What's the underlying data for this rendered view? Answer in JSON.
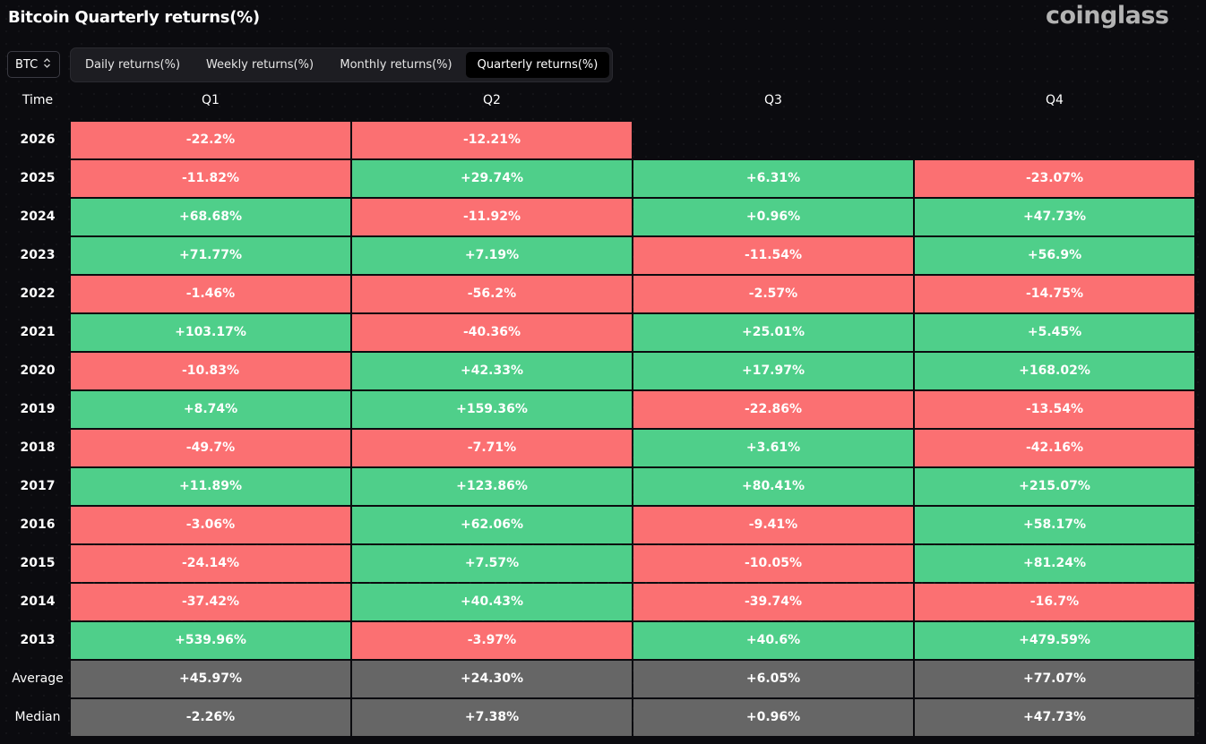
{
  "header": {
    "title": "Bitcoin Quarterly returns(%)",
    "logo_text": "coinglass"
  },
  "controls": {
    "coin": "BTC",
    "tabs": [
      {
        "label": "Daily returns(%)",
        "active": false
      },
      {
        "label": "Weekly returns(%)",
        "active": false
      },
      {
        "label": "Monthly returns(%)",
        "active": false
      },
      {
        "label": "Quarterly returns(%)",
        "active": true
      }
    ]
  },
  "colors": {
    "positive": "#4fcf8a",
    "negative": "#fb7072",
    "neutral": "#666666",
    "background": "#0b0b0f"
  },
  "table": {
    "time_header": "Time",
    "columns": [
      "Q1",
      "Q2",
      "Q3",
      "Q4"
    ],
    "rows": [
      {
        "year": "2026",
        "values": [
          "-22.2%",
          "-12.21%",
          "",
          ""
        ]
      },
      {
        "year": "2025",
        "values": [
          "-11.82%",
          "+29.74%",
          "+6.31%",
          "-23.07%"
        ]
      },
      {
        "year": "2024",
        "values": [
          "+68.68%",
          "-11.92%",
          "+0.96%",
          "+47.73%"
        ]
      },
      {
        "year": "2023",
        "values": [
          "+71.77%",
          "+7.19%",
          "-11.54%",
          "+56.9%"
        ]
      },
      {
        "year": "2022",
        "values": [
          "-1.46%",
          "-56.2%",
          "-2.57%",
          "-14.75%"
        ]
      },
      {
        "year": "2021",
        "values": [
          "+103.17%",
          "-40.36%",
          "+25.01%",
          "+5.45%"
        ]
      },
      {
        "year": "2020",
        "values": [
          "-10.83%",
          "+42.33%",
          "+17.97%",
          "+168.02%"
        ]
      },
      {
        "year": "2019",
        "values": [
          "+8.74%",
          "+159.36%",
          "-22.86%",
          "-13.54%"
        ]
      },
      {
        "year": "2018",
        "values": [
          "-49.7%",
          "-7.71%",
          "+3.61%",
          "-42.16%"
        ]
      },
      {
        "year": "2017",
        "values": [
          "+11.89%",
          "+123.86%",
          "+80.41%",
          "+215.07%"
        ]
      },
      {
        "year": "2016",
        "values": [
          "-3.06%",
          "+62.06%",
          "-9.41%",
          "+58.17%"
        ]
      },
      {
        "year": "2015",
        "values": [
          "-24.14%",
          "+7.57%",
          "-10.05%",
          "+81.24%"
        ]
      },
      {
        "year": "2014",
        "values": [
          "-37.42%",
          "+40.43%",
          "-39.74%",
          "-16.7%"
        ]
      },
      {
        "year": "2013",
        "values": [
          "+539.96%",
          "-3.97%",
          "+40.6%",
          "+479.59%"
        ]
      }
    ],
    "summary": [
      {
        "label": "Average",
        "values": [
          "+45.97%",
          "+24.30%",
          "+6.05%",
          "+77.07%"
        ]
      },
      {
        "label": "Median",
        "values": [
          "-2.26%",
          "+7.38%",
          "+0.96%",
          "+47.73%"
        ]
      }
    ]
  }
}
